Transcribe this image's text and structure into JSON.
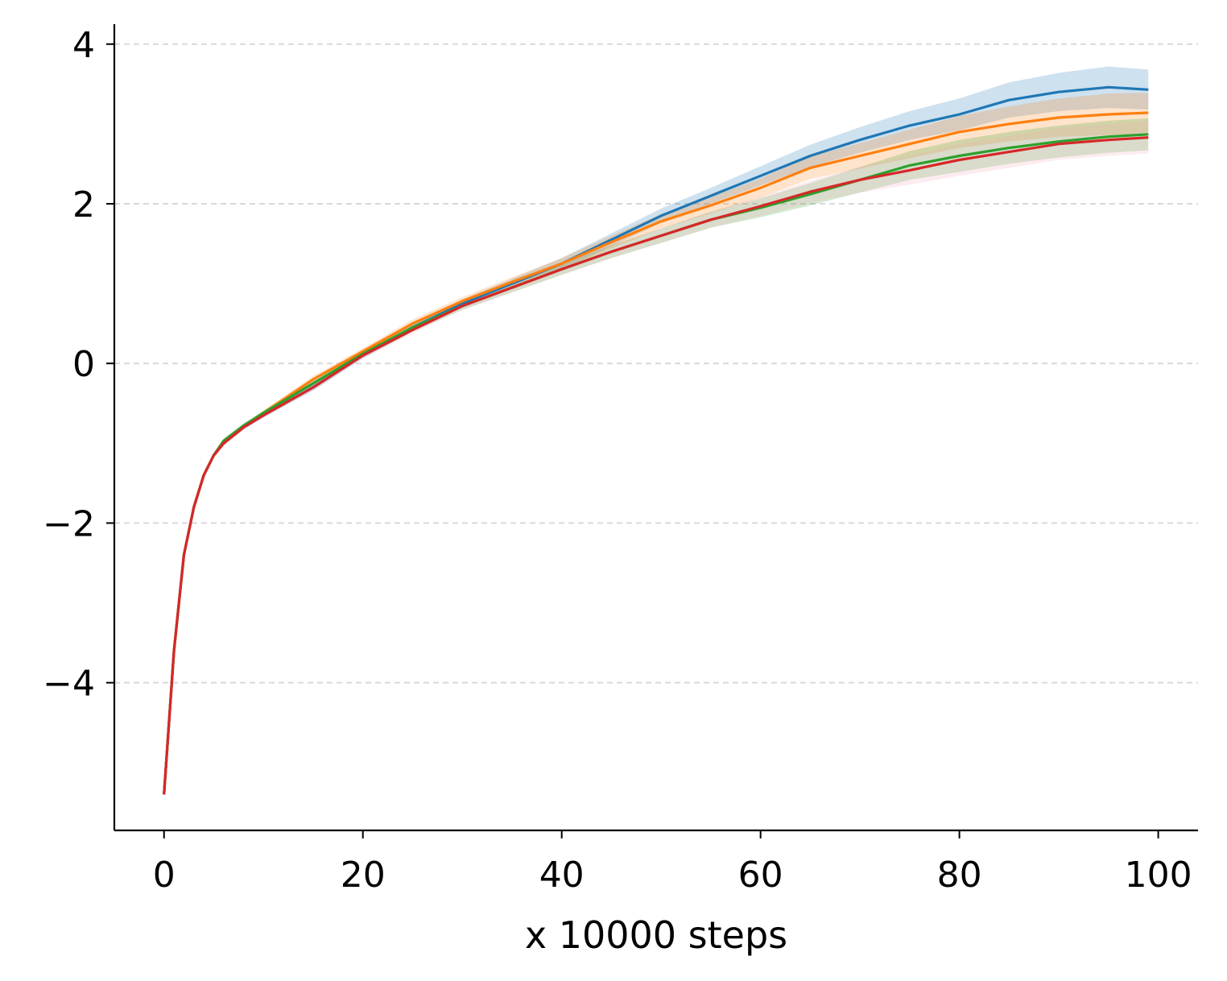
{
  "chart_data": {
    "type": "line",
    "title": "",
    "xlabel": "x 10000 steps",
    "ylabel": "",
    "xlim": [
      -5,
      104
    ],
    "ylim": [
      -5.85,
      4.25
    ],
    "x_ticks": [
      0,
      20,
      40,
      60,
      80,
      100
    ],
    "y_ticks": [
      -4,
      -2,
      0,
      2,
      4
    ],
    "grid": {
      "y": true,
      "x": false,
      "style": "dashed"
    },
    "legend": "none",
    "colors": [
      "#1f77b4",
      "#ff7f0e",
      "#2ca02c",
      "#d62728"
    ],
    "band_colors": [
      "#1f77b4",
      "#ff7f0e",
      "#2ca02c",
      "#f7a8b8"
    ],
    "x": [
      0,
      1,
      2,
      3,
      4,
      5,
      6,
      8,
      10,
      15,
      20,
      25,
      30,
      35,
      40,
      45,
      50,
      55,
      60,
      65,
      70,
      75,
      80,
      85,
      90,
      95,
      99
    ],
    "series": [
      {
        "values": [
          -5.4,
          -3.6,
          -2.4,
          -1.8,
          -1.4,
          -1.15,
          -1.0,
          -0.8,
          -0.65,
          -0.3,
          0.1,
          0.45,
          0.75,
          1.0,
          1.25,
          1.55,
          1.85,
          2.1,
          2.35,
          2.6,
          2.8,
          2.98,
          3.12,
          3.3,
          3.4,
          3.46,
          3.43
        ],
        "band": [
          0.02,
          0.03,
          0.03,
          0.03,
          0.03,
          0.03,
          0.03,
          0.03,
          0.03,
          0.04,
          0.04,
          0.05,
          0.05,
          0.06,
          0.07,
          0.08,
          0.09,
          0.1,
          0.12,
          0.14,
          0.16,
          0.18,
          0.2,
          0.22,
          0.24,
          0.26,
          0.25
        ]
      },
      {
        "values": [
          -5.4,
          -3.6,
          -2.4,
          -1.8,
          -1.4,
          -1.15,
          -1.0,
          -0.8,
          -0.62,
          -0.2,
          0.15,
          0.5,
          0.78,
          1.02,
          1.25,
          1.52,
          1.78,
          1.98,
          2.2,
          2.45,
          2.6,
          2.75,
          2.9,
          3.0,
          3.08,
          3.12,
          3.14
        ],
        "band": [
          0.02,
          0.03,
          0.03,
          0.03,
          0.03,
          0.03,
          0.03,
          0.03,
          0.03,
          0.04,
          0.04,
          0.05,
          0.05,
          0.06,
          0.07,
          0.08,
          0.09,
          0.1,
          0.12,
          0.14,
          0.16,
          0.18,
          0.2,
          0.22,
          0.24,
          0.26,
          0.25
        ]
      },
      {
        "values": [
          -5.4,
          -3.6,
          -2.4,
          -1.8,
          -1.4,
          -1.15,
          -0.97,
          -0.78,
          -0.62,
          -0.25,
          0.12,
          0.45,
          0.72,
          0.95,
          1.18,
          1.4,
          1.6,
          1.8,
          1.95,
          2.12,
          2.3,
          2.48,
          2.6,
          2.7,
          2.78,
          2.84,
          2.87
        ],
        "band": [
          0.02,
          0.03,
          0.03,
          0.03,
          0.03,
          0.03,
          0.03,
          0.03,
          0.03,
          0.04,
          0.04,
          0.05,
          0.05,
          0.06,
          0.07,
          0.08,
          0.09,
          0.1,
          0.12,
          0.14,
          0.16,
          0.18,
          0.2,
          0.2,
          0.2,
          0.2,
          0.2
        ]
      },
      {
        "values": [
          -5.4,
          -3.6,
          -2.4,
          -1.8,
          -1.4,
          -1.15,
          -1.0,
          -0.8,
          -0.65,
          -0.3,
          0.1,
          0.42,
          0.72,
          0.95,
          1.18,
          1.4,
          1.6,
          1.8,
          1.97,
          2.15,
          2.3,
          2.42,
          2.55,
          2.65,
          2.75,
          2.8,
          2.83
        ],
        "band": [
          0.02,
          0.03,
          0.03,
          0.03,
          0.03,
          0.03,
          0.03,
          0.03,
          0.03,
          0.04,
          0.04,
          0.05,
          0.05,
          0.06,
          0.07,
          0.08,
          0.09,
          0.1,
          0.12,
          0.14,
          0.16,
          0.18,
          0.2,
          0.2,
          0.2,
          0.2,
          0.2
        ]
      }
    ]
  }
}
